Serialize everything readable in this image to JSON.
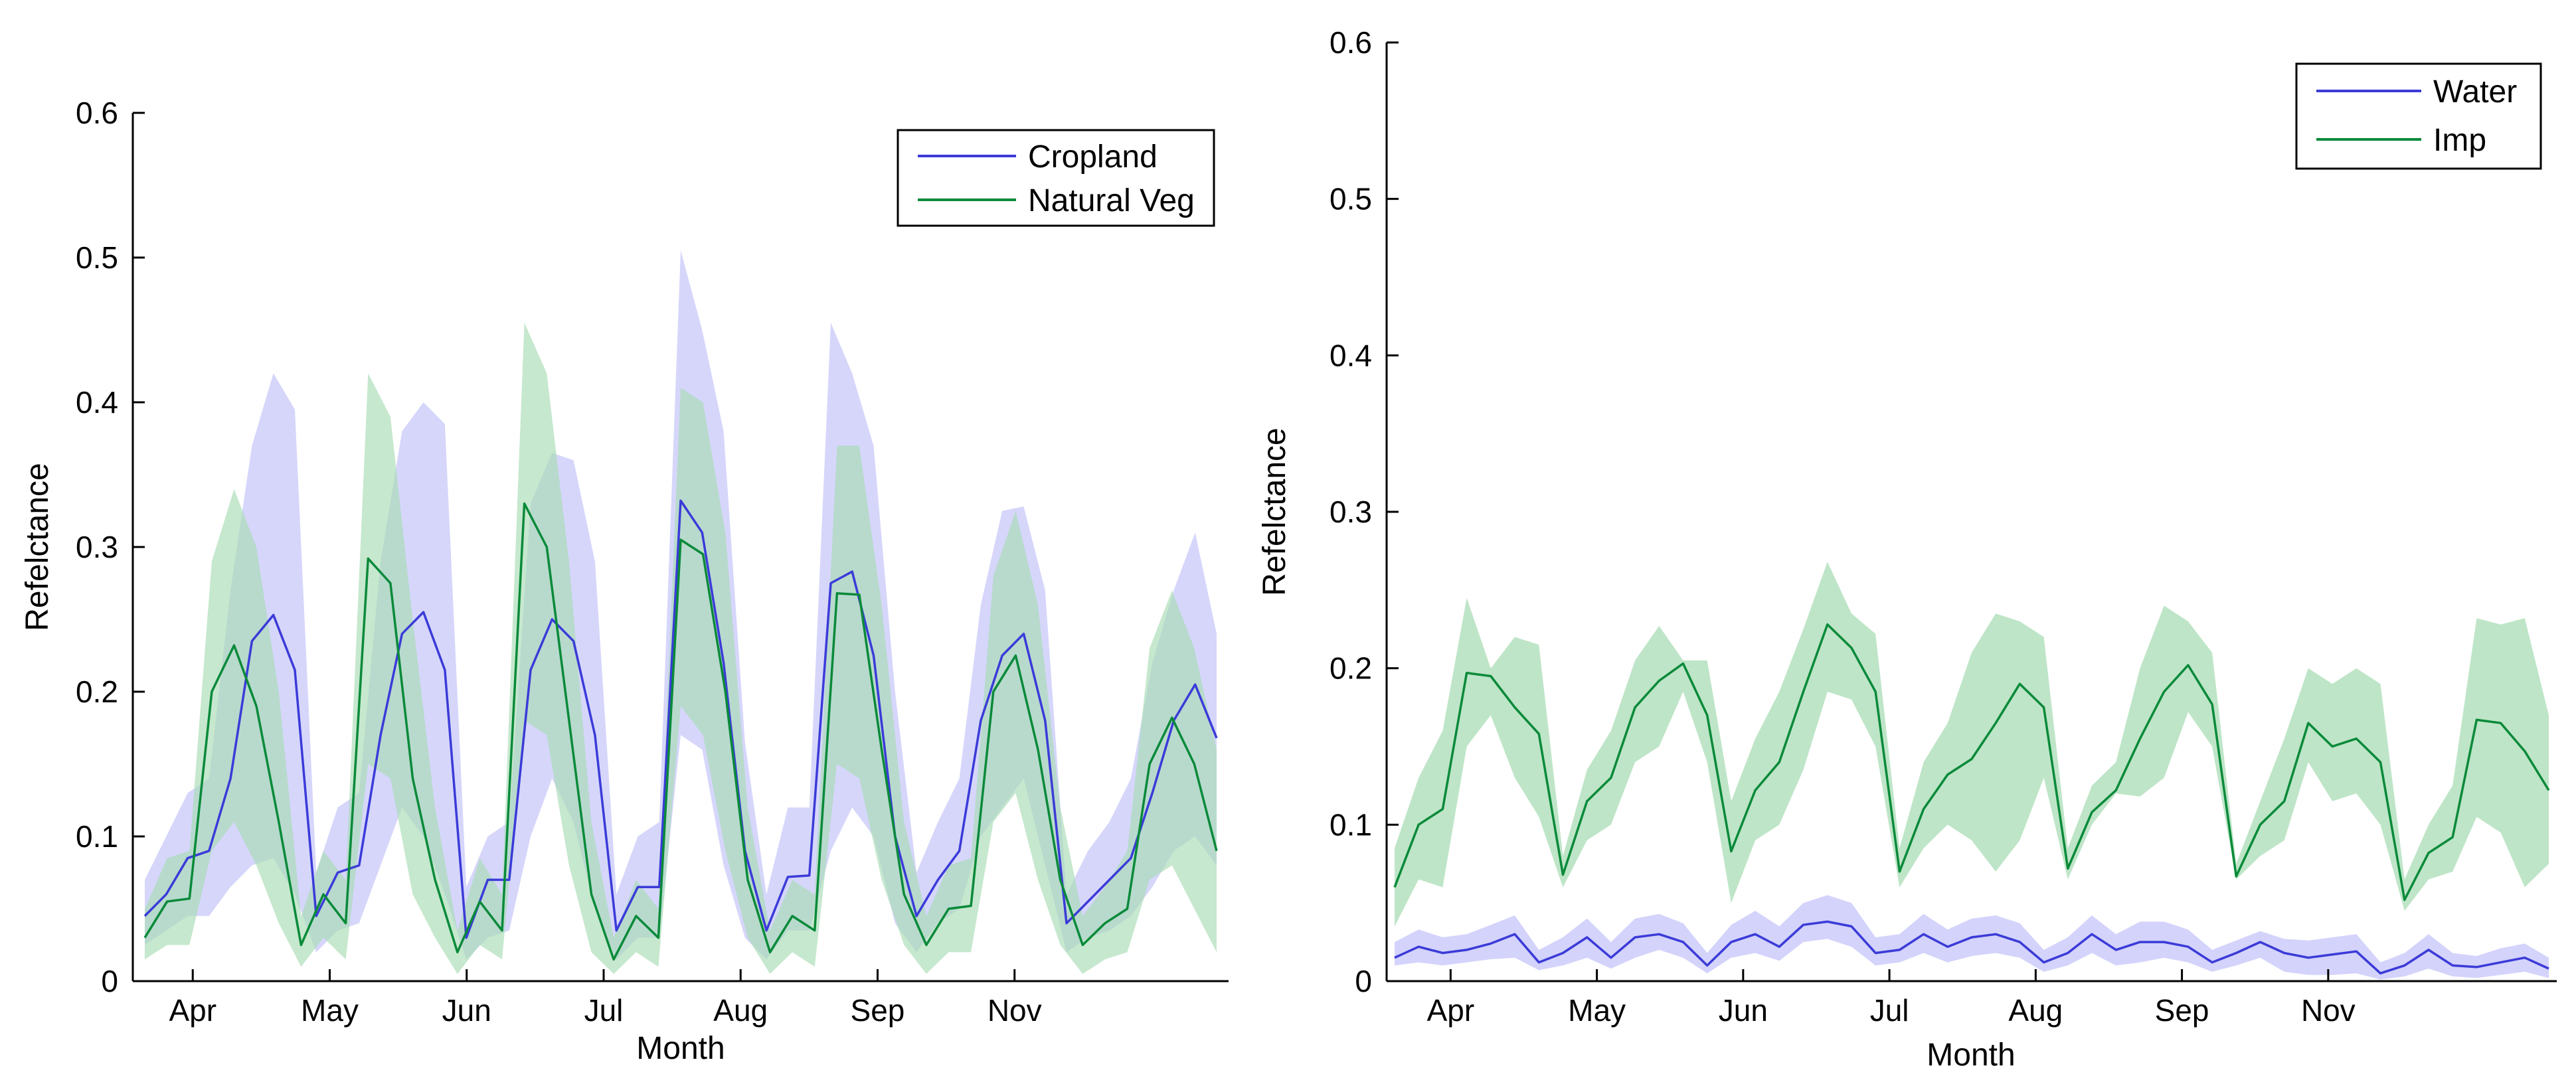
{
  "chart_data": [
    {
      "type": "line",
      "title": "",
      "xlabel": "Month",
      "ylabel": "Refelctance",
      "ylim": [
        0,
        0.6
      ],
      "yticks": [
        0,
        0.1,
        0.2,
        0.3,
        0.4,
        0.5,
        0.6
      ],
      "ytick_labels": [
        "0",
        "0.1",
        "0.2",
        "0.3",
        "0.4",
        "0.5",
        "0.6"
      ],
      "xlim": [
        0.5,
        64.5
      ],
      "xticks": [
        4,
        12,
        20,
        28,
        36,
        44,
        52
      ],
      "xtick_labels": [
        "Apr",
        "May",
        "Jun",
        "Jul",
        "Aug",
        "Sep",
        "Nov"
      ],
      "legend_position": "top-right",
      "series": [
        {
          "name": "Cropland",
          "color": "#3b3bd8",
          "band_color": "#c8c8fa",
          "band_opacity": 0.75,
          "mean": [
            0.045,
            0.06,
            0.085,
            0.09,
            0.14,
            0.235,
            0.253,
            0.215,
            0.045,
            0.075,
            0.08,
            0.17,
            0.24,
            0.255,
            0.215,
            0.03,
            0.07,
            0.07,
            0.215,
            0.25,
            0.235,
            0.17,
            0.035,
            0.065,
            0.065,
            0.332,
            0.31,
            0.22,
            0.09,
            0.035,
            0.072,
            0.073,
            0.275,
            0.283,
            0.225,
            0.1,
            0.045,
            0.07,
            0.09,
            0.18,
            0.225,
            0.24,
            0.18,
            0.04,
            0.055,
            0.07,
            0.085,
            0.13,
            0.18,
            0.205,
            0.168
          ],
          "lower": [
            0.025,
            0.035,
            0.045,
            0.045,
            0.065,
            0.08,
            0.085,
            0.06,
            0.02,
            0.035,
            0.04,
            0.08,
            0.12,
            0.1,
            0.06,
            0.015,
            0.03,
            0.035,
            0.1,
            0.14,
            0.11,
            0.05,
            0.015,
            0.03,
            0.03,
            0.17,
            0.16,
            0.08,
            0.03,
            0.015,
            0.035,
            0.035,
            0.09,
            0.12,
            0.1,
            0.04,
            0.02,
            0.04,
            0.05,
            0.1,
            0.12,
            0.14,
            0.08,
            0.02,
            0.03,
            0.035,
            0.045,
            0.065,
            0.09,
            0.1,
            0.08
          ],
          "upper": [
            0.07,
            0.1,
            0.13,
            0.14,
            0.27,
            0.37,
            0.42,
            0.395,
            0.075,
            0.12,
            0.13,
            0.29,
            0.38,
            0.4,
            0.385,
            0.065,
            0.1,
            0.11,
            0.33,
            0.365,
            0.36,
            0.29,
            0.06,
            0.1,
            0.11,
            0.505,
            0.45,
            0.38,
            0.165,
            0.06,
            0.12,
            0.12,
            0.455,
            0.42,
            0.37,
            0.2,
            0.075,
            0.11,
            0.14,
            0.26,
            0.325,
            0.328,
            0.27,
            0.06,
            0.09,
            0.11,
            0.14,
            0.22,
            0.27,
            0.31,
            0.24
          ]
        },
        {
          "name": "Natural Veg",
          "color": "#0a8a3a",
          "band_color": "#a8dcb4",
          "band_opacity": 0.65,
          "mean": [
            0.03,
            0.055,
            0.057,
            0.2,
            0.232,
            0.19,
            0.11,
            0.025,
            0.06,
            0.04,
            0.292,
            0.275,
            0.14,
            0.07,
            0.02,
            0.055,
            0.035,
            0.33,
            0.3,
            0.18,
            0.06,
            0.015,
            0.045,
            0.03,
            0.305,
            0.295,
            0.2,
            0.07,
            0.02,
            0.045,
            0.035,
            0.268,
            0.267,
            0.16,
            0.06,
            0.025,
            0.05,
            0.052,
            0.2,
            0.225,
            0.16,
            0.07,
            0.025,
            0.04,
            0.05,
            0.15,
            0.182,
            0.15,
            0.09
          ],
          "lower": [
            0.015,
            0.025,
            0.025,
            0.09,
            0.11,
            0.08,
            0.04,
            0.01,
            0.03,
            0.015,
            0.15,
            0.14,
            0.06,
            0.03,
            0.005,
            0.025,
            0.015,
            0.18,
            0.17,
            0.08,
            0.02,
            0.005,
            0.02,
            0.01,
            0.19,
            0.17,
            0.09,
            0.03,
            0.005,
            0.02,
            0.01,
            0.15,
            0.14,
            0.07,
            0.025,
            0.005,
            0.02,
            0.02,
            0.11,
            0.13,
            0.07,
            0.025,
            0.005,
            0.015,
            0.02,
            0.07,
            0.08,
            0.05,
            0.02
          ],
          "upper": [
            0.05,
            0.085,
            0.09,
            0.29,
            0.34,
            0.3,
            0.2,
            0.045,
            0.09,
            0.07,
            0.42,
            0.39,
            0.25,
            0.12,
            0.035,
            0.085,
            0.06,
            0.455,
            0.42,
            0.29,
            0.11,
            0.03,
            0.07,
            0.05,
            0.41,
            0.4,
            0.31,
            0.12,
            0.035,
            0.07,
            0.06,
            0.37,
            0.37,
            0.26,
            0.11,
            0.045,
            0.08,
            0.085,
            0.28,
            0.325,
            0.26,
            0.12,
            0.045,
            0.065,
            0.09,
            0.23,
            0.27,
            0.23,
            0.16
          ]
        }
      ],
      "legend": {
        "entries": [
          "Cropland",
          "Natural Veg"
        ]
      }
    },
    {
      "type": "line",
      "title": "",
      "xlabel": "Month",
      "ylabel": "Refelctance",
      "ylim": [
        0,
        0.6
      ],
      "yticks": [
        0,
        0.1,
        0.2,
        0.3,
        0.4,
        0.5,
        0.6
      ],
      "ytick_labels": [
        "0",
        "0.1",
        "0.2",
        "0.3",
        "0.4",
        "0.5",
        "0.6"
      ],
      "xlim": [
        0.5,
        64.5
      ],
      "xticks": [
        4,
        12,
        20,
        28,
        36,
        44,
        52
      ],
      "xtick_labels": [
        "Apr",
        "May",
        "Jun",
        "Jul",
        "Aug",
        "Sep",
        "Nov"
      ],
      "legend_position": "top-right",
      "series": [
        {
          "name": "Water",
          "color": "#3b3bd8",
          "band_color": "#c8c8fa",
          "band_opacity": 0.8,
          "mean": [
            0.015,
            0.022,
            0.018,
            0.02,
            0.024,
            0.03,
            0.012,
            0.018,
            0.028,
            0.015,
            0.028,
            0.03,
            0.025,
            0.01,
            0.025,
            0.03,
            0.022,
            0.036,
            0.038,
            0.035,
            0.018,
            0.02,
            0.03,
            0.022,
            0.028,
            0.03,
            0.025,
            0.012,
            0.018,
            0.03,
            0.02,
            0.025,
            0.025,
            0.022,
            0.012,
            0.018,
            0.025,
            0.018,
            0.015,
            0.017,
            0.019,
            0.005,
            0.01,
            0.02,
            0.01,
            0.009,
            0.012,
            0.015,
            0.008
          ],
          "lower": [
            0.01,
            0.012,
            0.01,
            0.012,
            0.014,
            0.015,
            0.007,
            0.01,
            0.015,
            0.008,
            0.015,
            0.02,
            0.015,
            0.005,
            0.015,
            0.018,
            0.013,
            0.025,
            0.027,
            0.022,
            0.01,
            0.012,
            0.018,
            0.012,
            0.016,
            0.018,
            0.015,
            0.006,
            0.01,
            0.018,
            0.01,
            0.012,
            0.015,
            0.012,
            0.006,
            0.01,
            0.015,
            0.006,
            0.004,
            0.004,
            0.005,
            0.001,
            0.003,
            0.008,
            0.003,
            0.002,
            0.004,
            0.006,
            0.002
          ],
          "upper": [
            0.025,
            0.033,
            0.028,
            0.03,
            0.036,
            0.042,
            0.02,
            0.028,
            0.04,
            0.025,
            0.04,
            0.043,
            0.037,
            0.018,
            0.036,
            0.045,
            0.035,
            0.05,
            0.055,
            0.05,
            0.028,
            0.03,
            0.043,
            0.033,
            0.04,
            0.042,
            0.037,
            0.02,
            0.028,
            0.042,
            0.03,
            0.038,
            0.038,
            0.033,
            0.02,
            0.026,
            0.032,
            0.027,
            0.026,
            0.028,
            0.03,
            0.012,
            0.018,
            0.03,
            0.018,
            0.016,
            0.021,
            0.024,
            0.015
          ]
        },
        {
          "name": "Imp",
          "color": "#0a8a3a",
          "band_color": "#a8dcb4",
          "band_opacity": 0.75,
          "mean": [
            0.06,
            0.1,
            0.11,
            0.197,
            0.195,
            0.175,
            0.158,
            0.068,
            0.115,
            0.13,
            0.175,
            0.192,
            0.203,
            0.17,
            0.083,
            0.122,
            0.14,
            0.185,
            0.228,
            0.213,
            0.185,
            0.07,
            0.11,
            0.132,
            0.142,
            0.165,
            0.19,
            0.175,
            0.072,
            0.108,
            0.122,
            0.155,
            0.185,
            0.202,
            0.177,
            0.067,
            0.1,
            0.115,
            0.165,
            0.15,
            0.155,
            0.14,
            0.052,
            0.082,
            0.092,
            0.167,
            0.165,
            0.147,
            0.122
          ],
          "lower": [
            0.035,
            0.065,
            0.06,
            0.15,
            0.17,
            0.13,
            0.105,
            0.06,
            0.09,
            0.1,
            0.14,
            0.15,
            0.185,
            0.14,
            0.05,
            0.09,
            0.1,
            0.135,
            0.185,
            0.18,
            0.15,
            0.06,
            0.085,
            0.1,
            0.09,
            0.07,
            0.09,
            0.13,
            0.065,
            0.1,
            0.12,
            0.118,
            0.13,
            0.172,
            0.15,
            0.065,
            0.08,
            0.09,
            0.14,
            0.115,
            0.12,
            0.1,
            0.045,
            0.065,
            0.07,
            0.105,
            0.095,
            0.06,
            0.075
          ],
          "upper": [
            0.085,
            0.13,
            0.16,
            0.245,
            0.2,
            0.22,
            0.215,
            0.08,
            0.135,
            0.16,
            0.205,
            0.227,
            0.205,
            0.205,
            0.115,
            0.155,
            0.185,
            0.225,
            0.268,
            0.235,
            0.222,
            0.085,
            0.14,
            0.165,
            0.21,
            0.235,
            0.23,
            0.22,
            0.085,
            0.125,
            0.14,
            0.2,
            0.24,
            0.23,
            0.21,
            0.075,
            0.115,
            0.155,
            0.2,
            0.19,
            0.2,
            0.19,
            0.065,
            0.1,
            0.125,
            0.232,
            0.228,
            0.232,
            0.17
          ]
        }
      ],
      "legend": {
        "entries": [
          "Water",
          "Imp"
        ]
      }
    }
  ]
}
